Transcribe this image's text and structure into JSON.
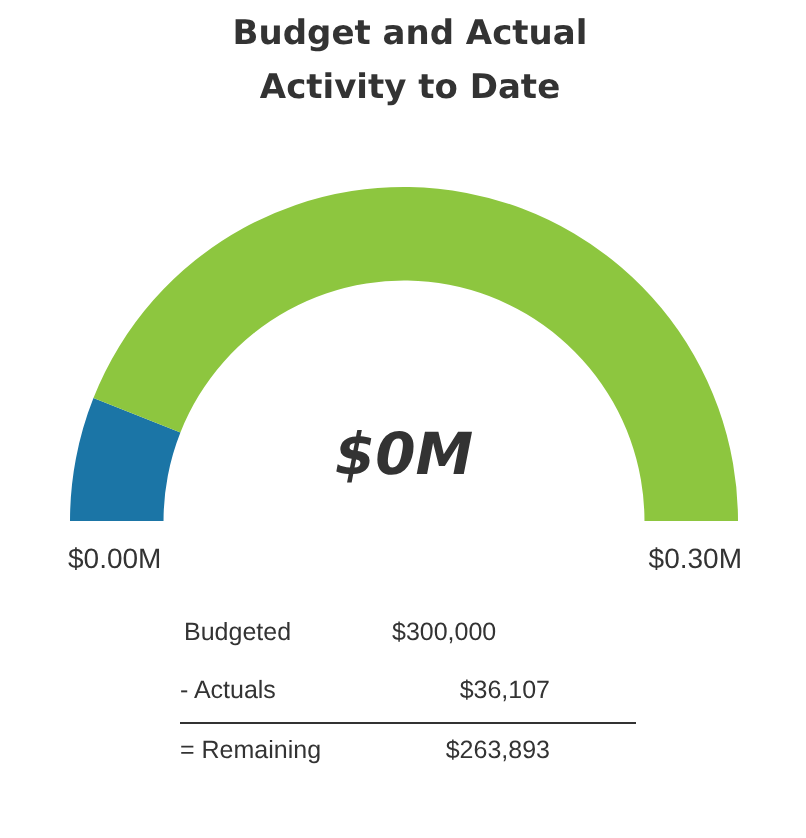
{
  "chart_data": {
    "type": "donut",
    "title": "Budget and Actual Activity to Date",
    "categories": [
      null,
      null
    ],
    "values": [
      12,
      88
    ],
    "colors": [
      "#1b75a6",
      "#8dc63f"
    ],
    "annotations": [
      "$0M",
      "$0.00M",
      "$0.30M",
      "Budgeted",
      "$300,000",
      "- Actuals",
      "$36,107",
      "= Remaining",
      "$263,893"
    ]
  }
}
